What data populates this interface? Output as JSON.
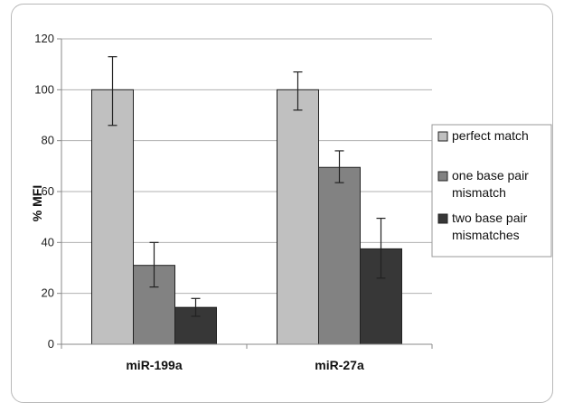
{
  "chart_data": {
    "type": "bar",
    "title": "",
    "xlabel": "",
    "ylabel": "% MFI",
    "ylim": [
      0,
      120
    ],
    "yticks": [
      0,
      20,
      40,
      60,
      80,
      100,
      120
    ],
    "categories": [
      "miR-199a",
      "miR-27a"
    ],
    "series": [
      {
        "name": "perfect match",
        "color": "#c0c0c0",
        "values": [
          100,
          100
        ],
        "errors": [
          [
            86,
            113
          ],
          [
            92,
            107
          ]
        ]
      },
      {
        "name": "one base pair mismatch",
        "legend_lines": [
          "one base pair",
          "mismatch"
        ],
        "color": "#828282",
        "values": [
          31,
          69.5
        ],
        "errors": [
          [
            22.5,
            40
          ],
          [
            63.5,
            76
          ]
        ]
      },
      {
        "name": "two base pair mismatches",
        "legend_lines": [
          "two base pair",
          "mismatches"
        ],
        "color": "#373737",
        "values": [
          14.5,
          37.5
        ],
        "errors": [
          [
            11,
            18
          ],
          [
            26,
            49.5
          ]
        ]
      }
    ],
    "grid": true,
    "legend": "right"
  }
}
